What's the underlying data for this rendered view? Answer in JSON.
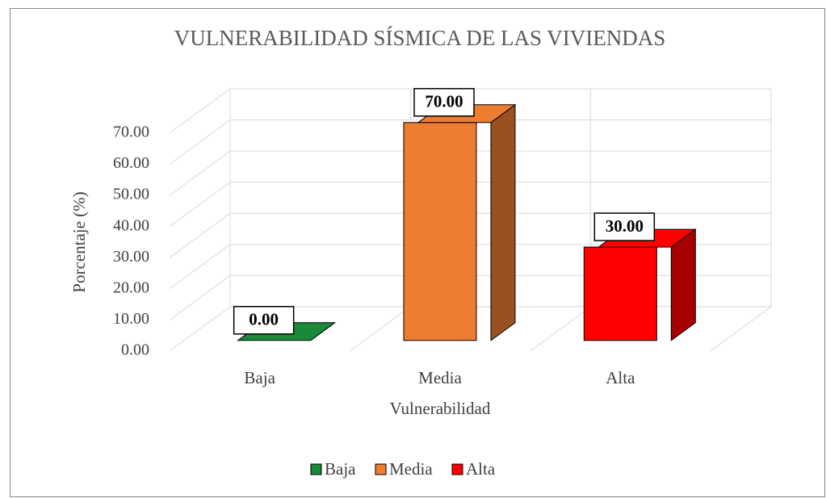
{
  "chart_data": {
    "type": "bar3d",
    "title": "VULNERABILIDAD SÍSMICA DE LAS VIVIENDAS",
    "x_label": "Vulnerabilidad",
    "y_label": "Porcentaje (%)",
    "categories": [
      "Baja",
      "Media",
      "Alta"
    ],
    "values": [
      0,
      70,
      30
    ],
    "value_labels": [
      "0.00",
      "70.00",
      "30.00"
    ],
    "colors": [
      "#1a8a3a",
      "#ed7d31",
      "#ff0000"
    ],
    "ylim": [
      0,
      70
    ],
    "yticks": [
      {
        "value": 0,
        "label": "0.00"
      },
      {
        "value": 10,
        "label": "10.00"
      },
      {
        "value": 20,
        "label": "20.00"
      },
      {
        "value": 30,
        "label": "30.00"
      },
      {
        "value": 40,
        "label": "40.00"
      },
      {
        "value": 50,
        "label": "50.00"
      },
      {
        "value": 60,
        "label": "60.00"
      },
      {
        "value": 70,
        "label": "70.00"
      }
    ],
    "grid": true,
    "legend": "bottom"
  }
}
